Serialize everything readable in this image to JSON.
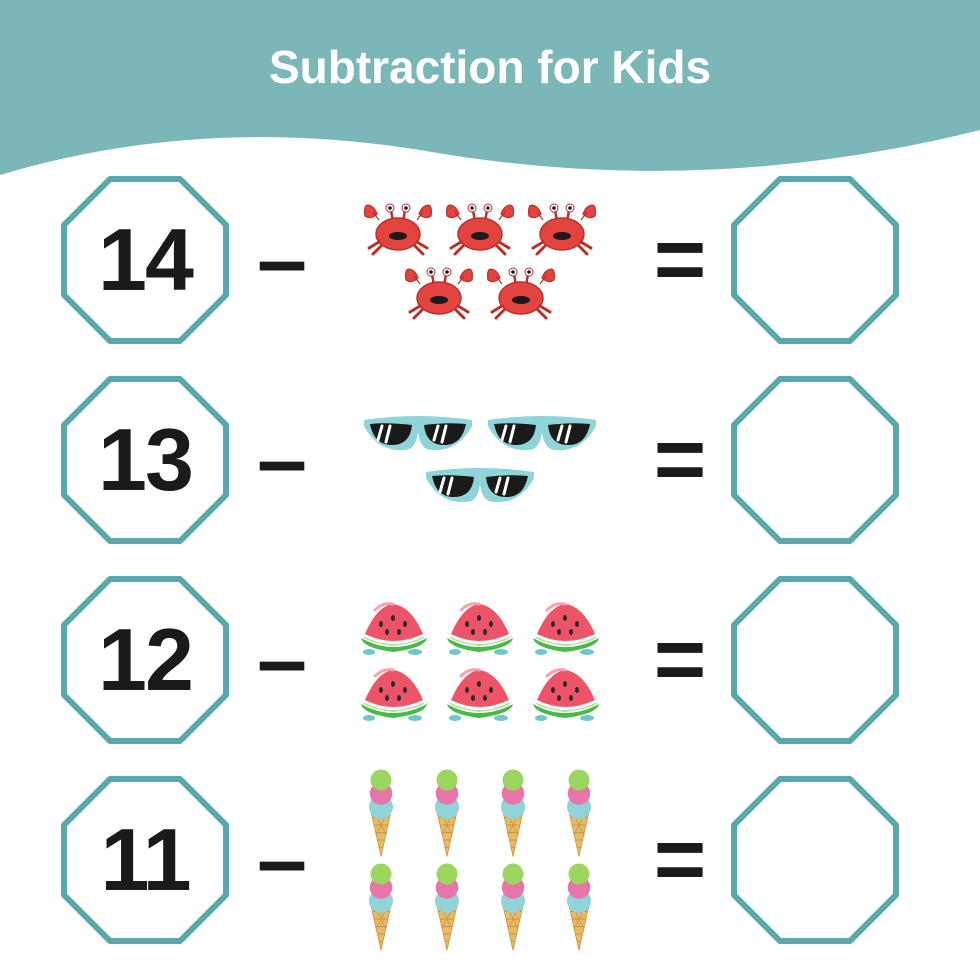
{
  "title": "Subtraction for Kids",
  "colors": {
    "header_bg": "#7bb6b8",
    "octagon_stroke": "#59a8ac",
    "octagon_fill": "#ffffff",
    "number_color": "#1a1a1a",
    "op_color": "#1a1a1a",
    "title_color": "#ffffff",
    "crab_body": "#e4443f",
    "crab_dark": "#b82f2a",
    "sunglasses_frame": "#8fd4d8",
    "sunglasses_lens": "#1a1a1a",
    "sunglasses_shine": "#ffffff",
    "watermelon_flesh": "#ed5468",
    "watermelon_rind": "#4cb848",
    "watermelon_light": "#a8e0a0",
    "watermelon_seed": "#2a2a2a",
    "watermelon_drip": "#6fc7cd",
    "icecream_cone": "#e8b968",
    "icecream_cone_line": "#c99640",
    "icecream_scoop1": "#8fd4d8",
    "icecream_scoop2": "#e875a8",
    "icecream_scoop3": "#9dd65e"
  },
  "octagon": {
    "stroke_width": 6
  },
  "rows": [
    {
      "number": "14",
      "icon": "crab",
      "count": 5
    },
    {
      "number": "13",
      "icon": "sunglasses",
      "count": 3
    },
    {
      "number": "12",
      "icon": "watermelon",
      "count": 6
    },
    {
      "number": "11",
      "icon": "icecream",
      "count": 8
    }
  ],
  "operators": {
    "minus": "–",
    "equals": "="
  }
}
